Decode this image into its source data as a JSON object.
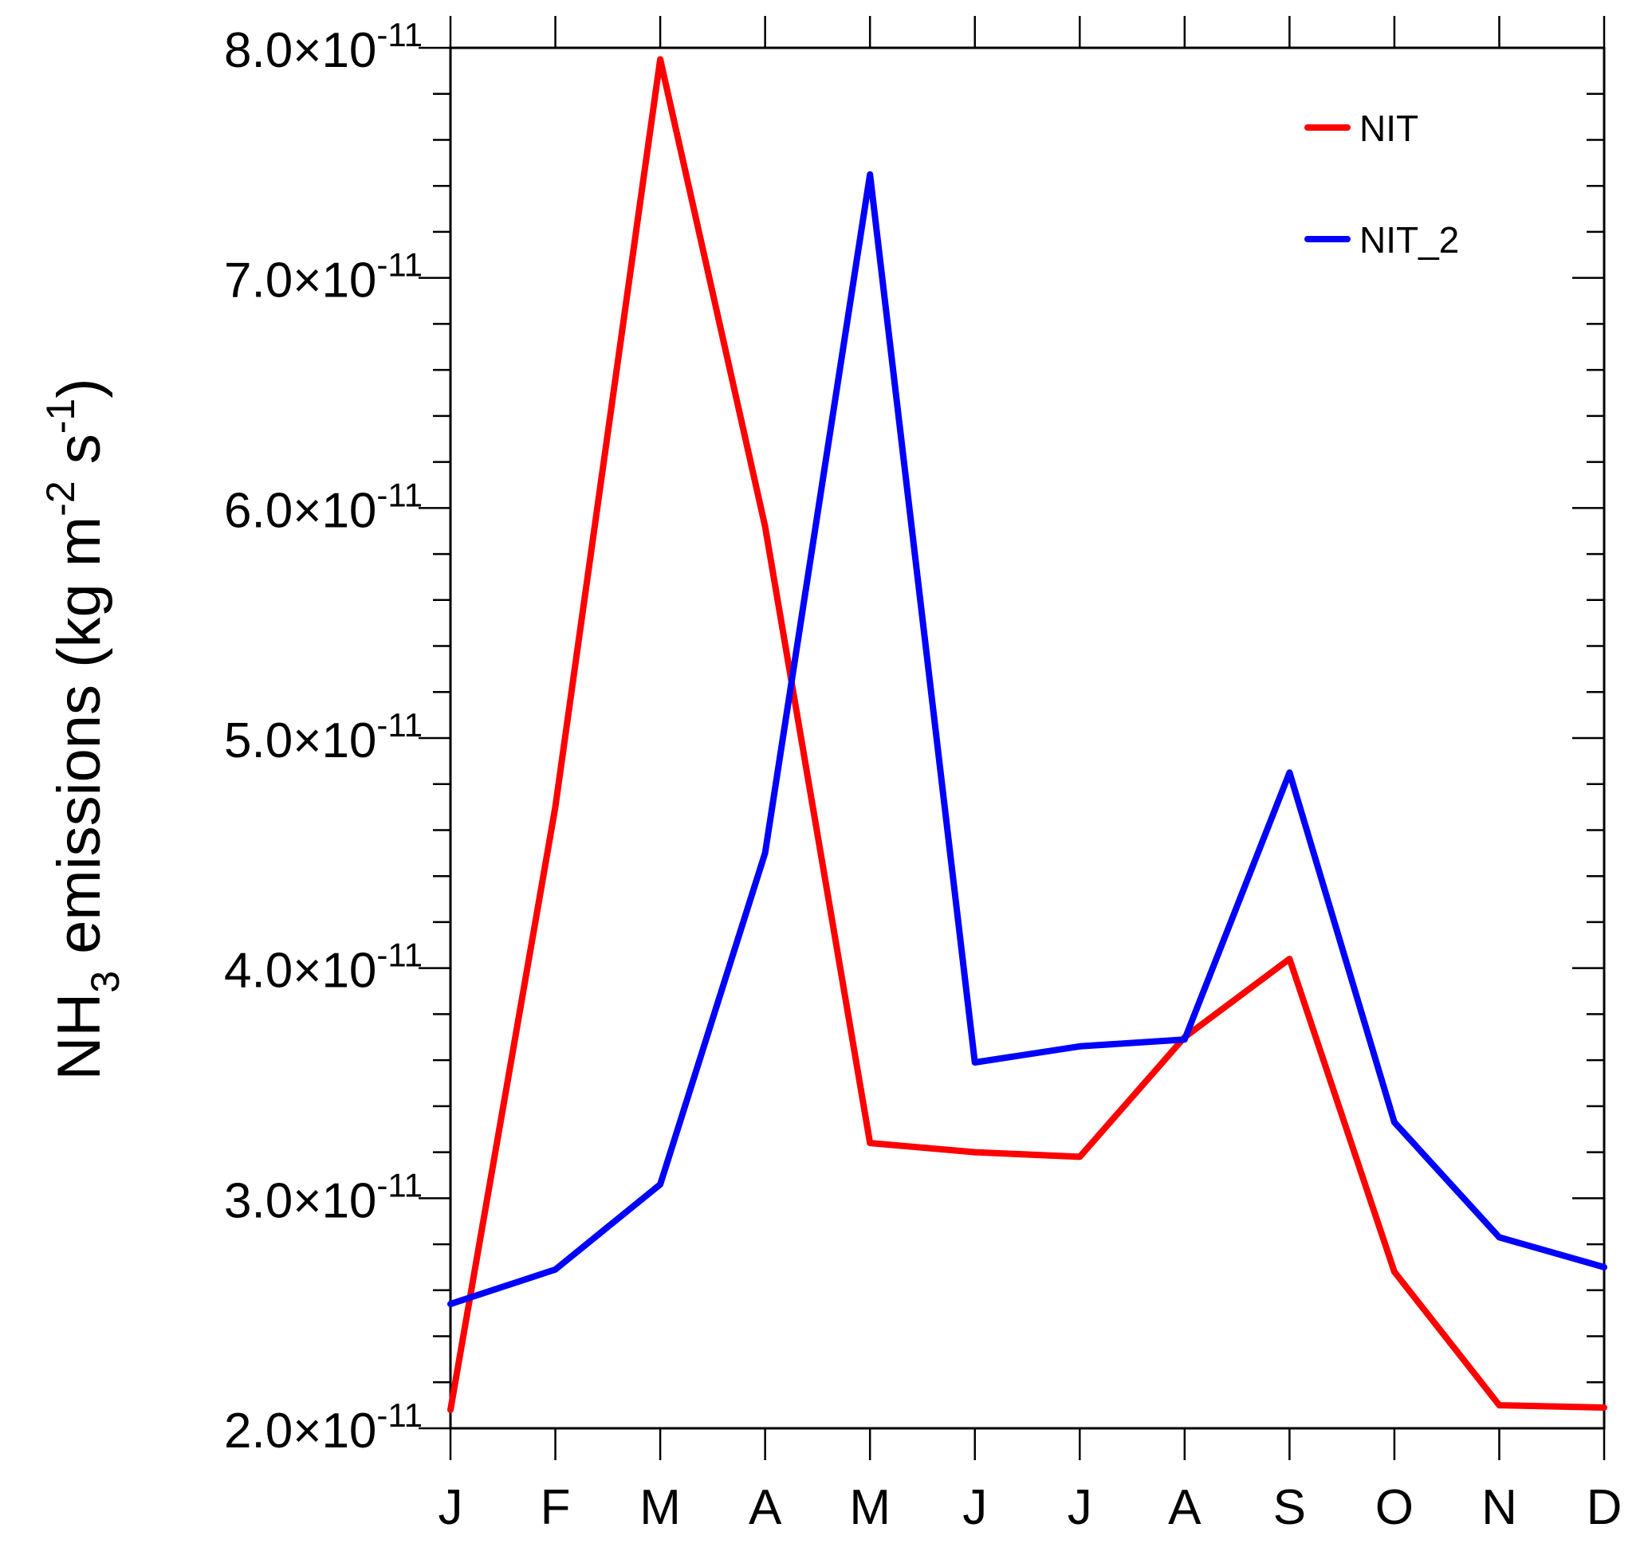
{
  "chart_data": {
    "type": "line",
    "title": "",
    "xlabel": "",
    "ylabel": {
      "prefix": "NH",
      "prefix_subscript": "3",
      "middle": " emissions (kg m",
      "exp1": "-2",
      "middle2": " s",
      "exp2": "-1",
      "suffix": ")"
    },
    "categories": [
      "J",
      "F",
      "M",
      "A",
      "M",
      "J",
      "J",
      "A",
      "S",
      "O",
      "N",
      "D"
    ],
    "ylim": [
      2e-11,
      8e-11
    ],
    "yticks": [
      {
        "value": 2e-11,
        "mantissa": "2.0",
        "times": "×10",
        "exponent": "-11"
      },
      {
        "value": 3e-11,
        "mantissa": "3.0",
        "times": "×10",
        "exponent": "-11"
      },
      {
        "value": 4e-11,
        "mantissa": "4.0",
        "times": "×10",
        "exponent": "-11"
      },
      {
        "value": 5e-11,
        "mantissa": "5.0",
        "times": "×10",
        "exponent": "-11"
      },
      {
        "value": 6e-11,
        "mantissa": "6.0",
        "times": "×10",
        "exponent": "-11"
      },
      {
        "value": 7e-11,
        "mantissa": "7.0",
        "times": "×10",
        "exponent": "-11"
      },
      {
        "value": 8e-11,
        "mantissa": "8.0",
        "times": "×10",
        "exponent": "-11"
      }
    ],
    "y_minor_step": 2e-12,
    "grid": false,
    "legend_position": "top-right",
    "series": [
      {
        "name": "NIT",
        "color": "#ff0000",
        "values": [
          2.08e-11,
          4.7e-11,
          7.95e-11,
          5.92e-11,
          3.24e-11,
          3.2e-11,
          3.18e-11,
          3.7e-11,
          4.04e-11,
          2.68e-11,
          2.1e-11,
          2.09e-11
        ]
      },
      {
        "name": "NIT_2",
        "color": "#0000ff",
        "values": [
          2.54e-11,
          2.69e-11,
          3.06e-11,
          4.5e-11,
          7.45e-11,
          3.59e-11,
          3.66e-11,
          3.69e-11,
          4.85e-11,
          3.33e-11,
          2.83e-11,
          2.7e-11
        ]
      }
    ]
  }
}
